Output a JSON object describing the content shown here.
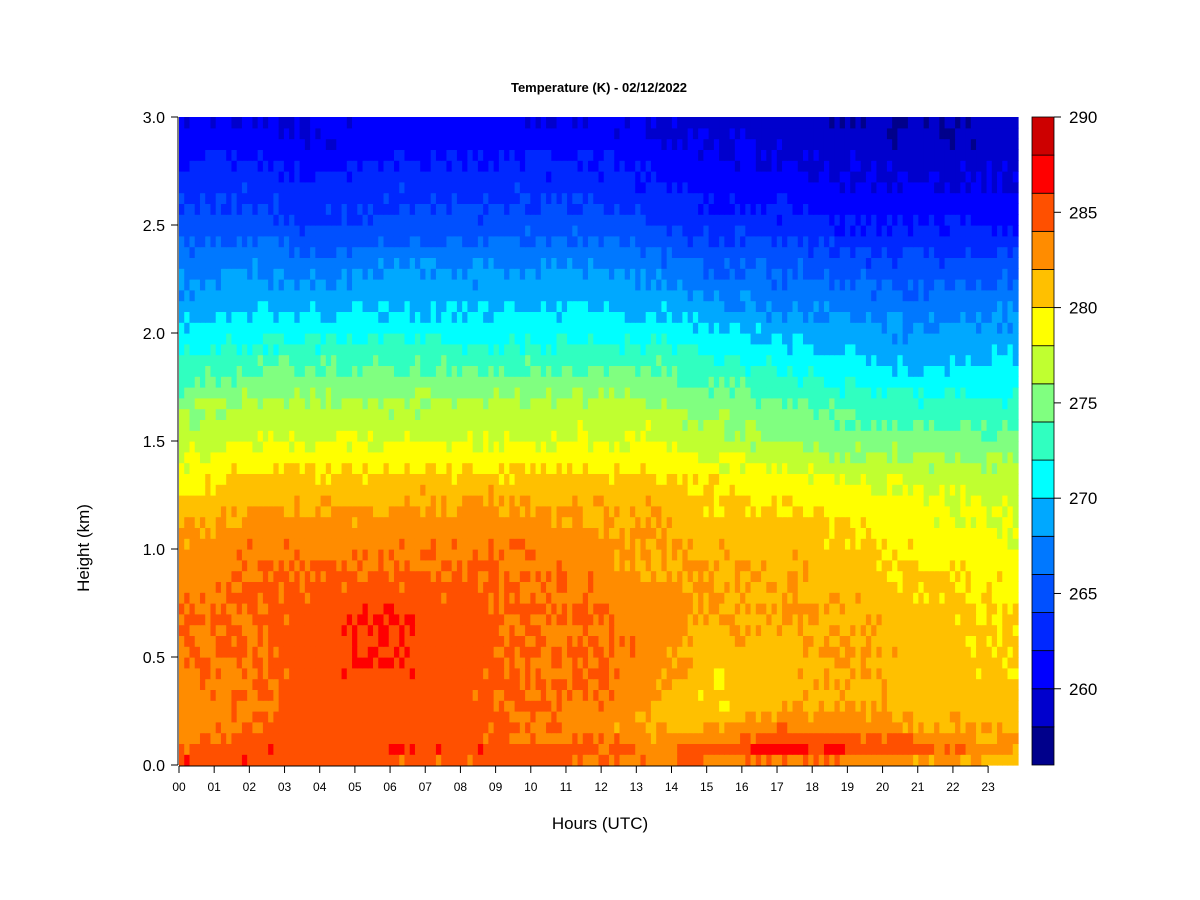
{
  "chart_data": {
    "type": "heatmap",
    "title": "Temperature (K) - 02/12/2022",
    "xlabel": "Hours (UTC)",
    "ylabel": "Height (km)",
    "xlim": [
      0,
      23.85
    ],
    "ylim": [
      0,
      3.0
    ],
    "x_ticks": [
      "00",
      "01",
      "02",
      "03",
      "04",
      "05",
      "06",
      "07",
      "08",
      "09",
      "10",
      "11",
      "12",
      "13",
      "14",
      "15",
      "16",
      "17",
      "18",
      "19",
      "20",
      "21",
      "22",
      "23"
    ],
    "y_ticks": [
      "0.0",
      "0.5",
      "1.0",
      "1.5",
      "2.0",
      "2.5",
      "3.0"
    ],
    "colorbar": {
      "min": 256,
      "max": 290,
      "tick_values": [
        260,
        265,
        270,
        275,
        280,
        285,
        290
      ],
      "tick_labels": [
        "260",
        "265",
        "270",
        "275",
        "280",
        "285",
        "290"
      ],
      "levels": [
        256,
        258,
        260,
        262,
        264,
        266,
        268,
        270,
        272,
        274,
        276,
        278,
        280,
        282,
        284,
        286,
        288,
        290
      ],
      "colors": [
        "#00008B",
        "#0000CD",
        "#0000FF",
        "#0028FF",
        "#0050FF",
        "#0078FF",
        "#00A8FF",
        "#00FFFF",
        "#30FFC0",
        "#80FF80",
        "#C0FF30",
        "#FFFF00",
        "#FFC000",
        "#FF8C00",
        "#FF5000",
        "#FF0000",
        "#CD0000",
        "#8B0000"
      ]
    },
    "grid": false,
    "height_profile_heights_km": [
      0.0,
      0.05,
      0.1,
      0.2,
      0.3,
      0.5,
      0.7,
      0.9,
      1.1,
      1.3,
      1.5,
      1.7,
      1.9,
      2.1,
      2.3,
      2.5,
      2.7,
      2.9,
      3.0
    ],
    "time_hours": [
      0,
      2,
      4,
      6,
      8,
      10,
      12,
      13.5,
      15,
      17,
      19,
      21,
      23.85
    ],
    "temperature_K": [
      [
        286,
        285,
        284,
        283,
        283,
        283,
        283,
        282,
        282,
        281,
        281,
        280,
        279
      ],
      [
        285,
        286,
        286,
        286,
        286,
        286,
        285,
        285,
        285,
        287,
        286,
        285,
        283
      ],
      [
        283,
        285,
        285,
        285,
        285,
        284,
        284,
        283,
        284,
        286,
        285,
        284,
        282
      ],
      [
        283,
        284,
        285,
        285,
        285,
        284,
        283,
        281,
        281,
        283,
        283,
        282,
        281
      ],
      [
        283,
        284,
        285,
        285,
        285,
        284,
        284,
        282,
        280,
        281,
        282,
        281,
        281
      ],
      [
        284,
        284,
        285,
        286,
        285,
        284,
        284,
        283,
        281,
        281,
        282,
        281,
        280
      ],
      [
        284,
        284,
        285,
        286,
        285,
        284,
        284,
        283,
        282,
        282,
        282,
        281,
        280
      ],
      [
        283,
        284,
        284,
        284,
        284,
        284,
        283,
        282,
        282,
        282,
        281,
        280,
        279
      ],
      [
        282,
        283,
        283,
        283,
        283,
        283,
        282,
        282,
        281,
        281,
        280,
        279,
        278
      ],
      [
        279,
        281,
        281,
        281,
        281,
        281,
        281,
        281,
        280,
        279,
        278,
        278,
        277
      ],
      [
        277,
        278,
        278,
        278,
        278,
        278,
        278,
        278,
        277,
        276,
        275,
        275,
        275
      ],
      [
        275,
        276,
        276,
        276,
        276,
        276,
        276,
        276,
        275,
        274,
        273,
        272,
        272
      ],
      [
        272,
        273,
        273,
        273,
        273,
        273,
        273,
        273,
        272,
        271,
        270,
        269,
        270
      ],
      [
        269,
        270,
        270,
        270,
        270,
        270,
        270,
        270,
        269,
        268,
        268,
        267,
        268
      ],
      [
        267,
        268,
        267,
        268,
        268,
        268,
        268,
        267,
        266,
        266,
        265,
        265,
        265
      ],
      [
        265,
        265,
        264,
        265,
        265,
        265,
        265,
        264,
        263,
        263,
        262,
        262,
        262
      ],
      [
        263,
        263,
        262,
        263,
        263,
        263,
        263,
        262,
        261,
        261,
        260,
        260,
        260
      ],
      [
        261,
        261,
        260,
        261,
        261,
        261,
        261,
        260,
        260,
        259,
        259,
        258,
        259
      ],
      [
        260,
        260,
        260,
        261,
        261,
        260,
        260,
        260,
        259,
        259,
        258,
        258,
        259
      ]
    ]
  }
}
